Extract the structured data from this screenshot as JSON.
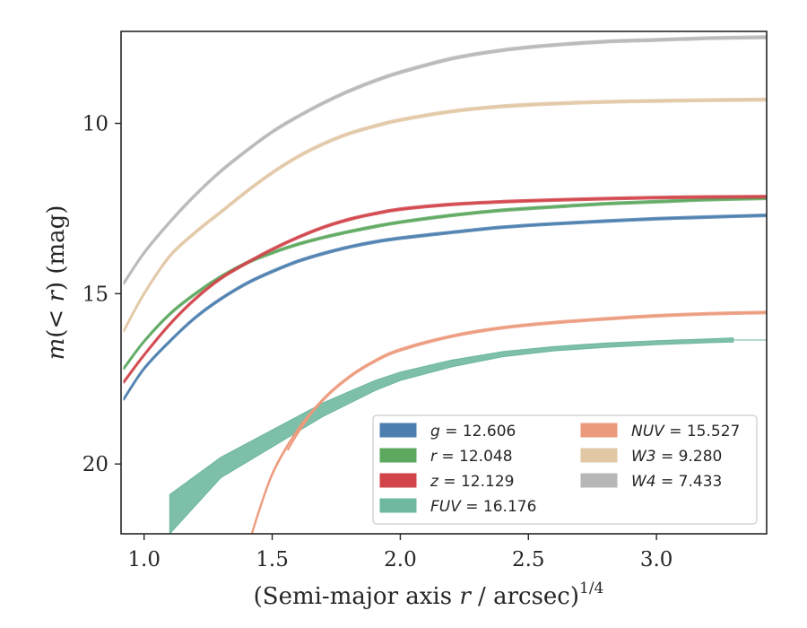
{
  "chart_data": {
    "type": "line",
    "xlabel": "(Semi-major axis r / arcsec)",
    "xlabel_exponent": "1/4",
    "ylabel": "m(< r) (mag)",
    "xlim": [
      0.91,
      3.43
    ],
    "ylim": [
      22.05,
      7.3
    ],
    "y_inverted": true,
    "grid": false,
    "legend_position": "lower-right",
    "xticks": [
      "1.0",
      "1.5",
      "2.0",
      "2.5",
      "3.0"
    ],
    "yticks": [
      "10",
      "15",
      "20"
    ],
    "series": [
      {
        "name": "g",
        "legend_label": "g = 12.606",
        "color": "#4c7faf",
        "band": 0.06,
        "x": [
          0.92,
          1.0,
          1.1,
          1.2,
          1.3,
          1.4,
          1.5,
          1.6,
          1.7,
          1.8,
          1.9,
          2.0,
          2.2,
          2.4,
          2.6,
          2.8,
          3.0,
          3.2,
          3.43
        ],
        "y": [
          18.1,
          17.2,
          16.4,
          15.7,
          15.15,
          14.7,
          14.35,
          14.05,
          13.82,
          13.63,
          13.48,
          13.37,
          13.2,
          13.05,
          12.95,
          12.87,
          12.8,
          12.75,
          12.7
        ]
      },
      {
        "name": "r",
        "legend_label": "r = 12.048",
        "color": "#5da85f",
        "band": 0.06,
        "x": [
          0.92,
          1.0,
          1.1,
          1.2,
          1.3,
          1.4,
          1.5,
          1.6,
          1.7,
          1.8,
          1.9,
          2.0,
          2.2,
          2.4,
          2.6,
          2.8,
          3.0,
          3.2,
          3.43
        ],
        "y": [
          17.2,
          16.4,
          15.6,
          15.0,
          14.5,
          14.1,
          13.8,
          13.55,
          13.35,
          13.18,
          13.03,
          12.9,
          12.7,
          12.55,
          12.45,
          12.36,
          12.3,
          12.24,
          12.2
        ]
      },
      {
        "name": "z",
        "legend_label": "z = 12.129",
        "color": "#d1444a",
        "band": 0.06,
        "x": [
          0.92,
          1.0,
          1.1,
          1.2,
          1.3,
          1.4,
          1.5,
          1.6,
          1.7,
          1.8,
          1.9,
          2.0,
          2.2,
          2.4,
          2.6,
          2.8,
          3.0,
          3.2,
          3.43
        ],
        "y": [
          17.6,
          16.8,
          15.9,
          15.15,
          14.55,
          14.1,
          13.7,
          13.35,
          13.05,
          12.82,
          12.65,
          12.52,
          12.38,
          12.3,
          12.25,
          12.21,
          12.18,
          12.16,
          12.15
        ]
      },
      {
        "name": "FUV",
        "legend_label": "FUV = 16.176",
        "color": "#6fb8a0",
        "band_fill": true,
        "x": [
          1.1,
          1.3,
          1.5,
          1.7,
          1.9,
          2.0,
          2.2,
          2.4,
          2.6,
          2.8,
          3.0,
          3.2,
          3.3
        ],
        "y_upper": [
          20.9,
          19.8,
          19.0,
          18.2,
          17.55,
          17.3,
          16.95,
          16.7,
          16.55,
          16.45,
          16.38,
          16.33,
          16.3
        ],
        "y_lower": [
          22.05,
          20.4,
          19.5,
          18.6,
          17.85,
          17.55,
          17.15,
          16.85,
          16.68,
          16.58,
          16.5,
          16.44,
          16.42
        ],
        "extension_x": [
          3.3,
          3.43
        ],
        "extension_y": [
          16.36,
          16.36
        ]
      },
      {
        "name": "NUV",
        "legend_label": "NUV = 15.527",
        "color": "#ec9a7c",
        "band": 0.06,
        "x": [
          1.42,
          1.5,
          1.6,
          1.7,
          1.8,
          1.9,
          2.0,
          2.2,
          2.4,
          2.6,
          2.8,
          3.0,
          3.2,
          3.43
        ],
        "y": [
          22.05,
          20.3,
          19.0,
          18.1,
          17.45,
          16.98,
          16.65,
          16.25,
          16.0,
          15.85,
          15.74,
          15.65,
          15.59,
          15.55
        ],
        "secondary_x": [
          1.56,
          1.6,
          1.65,
          1.7
        ],
        "secondary_y": [
          19.6,
          19.1,
          18.55,
          18.1
        ]
      },
      {
        "name": "W3",
        "legend_label": "W3 = 9.280",
        "color": "#e2c7a5",
        "band": 0.07,
        "x": [
          0.92,
          1.0,
          1.1,
          1.2,
          1.3,
          1.4,
          1.5,
          1.6,
          1.7,
          1.8,
          1.9,
          2.0,
          2.2,
          2.4,
          2.6,
          2.8,
          3.0,
          3.2,
          3.43
        ],
        "y": [
          16.1,
          15.0,
          13.9,
          13.2,
          12.6,
          12.0,
          11.45,
          10.98,
          10.6,
          10.3,
          10.08,
          9.9,
          9.65,
          9.5,
          9.42,
          9.37,
          9.34,
          9.32,
          9.3
        ]
      },
      {
        "name": "W4",
        "legend_label": "W4 = 7.433",
        "color": "#b7b7b7",
        "band": 0.07,
        "x": [
          0.92,
          1.0,
          1.1,
          1.2,
          1.3,
          1.4,
          1.5,
          1.6,
          1.7,
          1.8,
          1.9,
          2.0,
          2.2,
          2.4,
          2.6,
          2.8,
          3.0,
          3.2,
          3.43
        ],
        "y": [
          14.7,
          13.8,
          12.9,
          12.1,
          11.4,
          10.8,
          10.25,
          9.8,
          9.4,
          9.05,
          8.75,
          8.5,
          8.1,
          7.85,
          7.7,
          7.6,
          7.55,
          7.5,
          7.47
        ]
      }
    ]
  }
}
